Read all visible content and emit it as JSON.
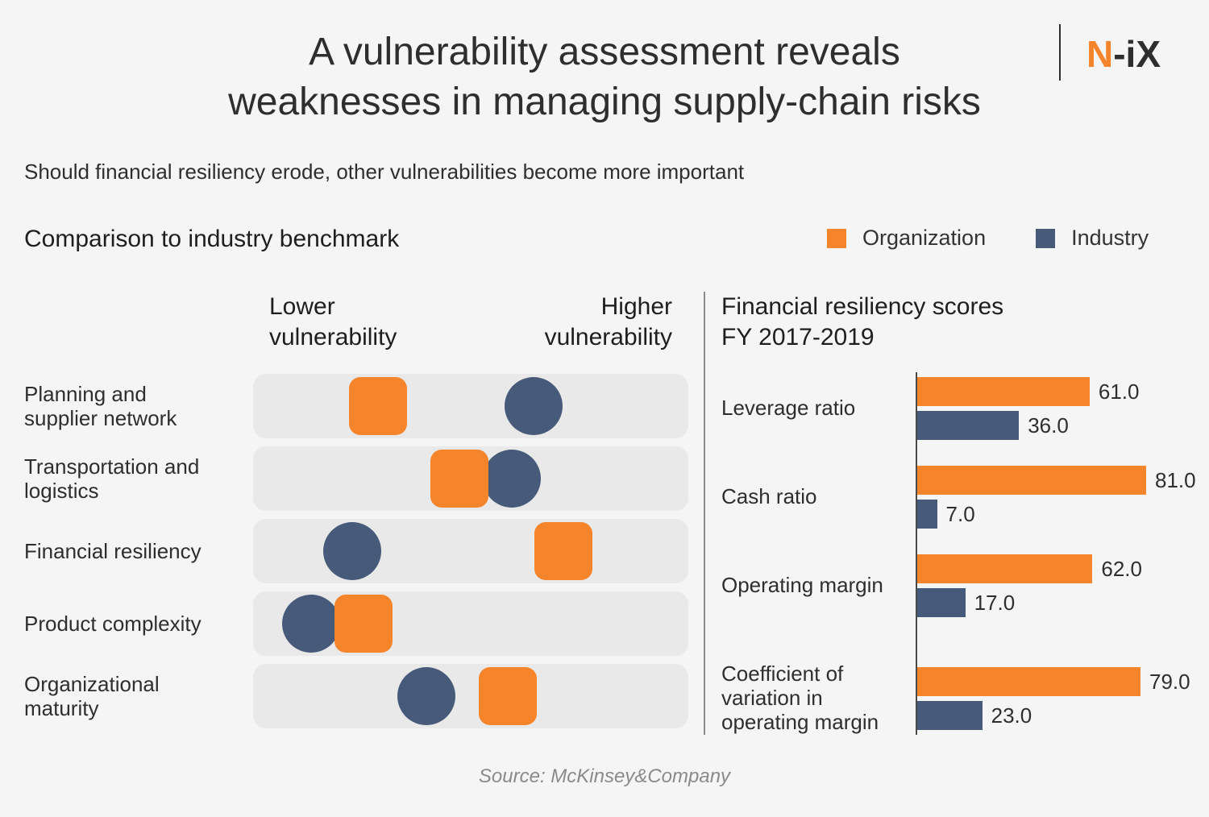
{
  "header": {
    "title_line1": "A vulnerability assessment reveals",
    "title_line2": "weaknesses in managing supply-chain risks",
    "logo_n": "N",
    "logo_rest": "-iX",
    "subtitle": "Should financial resiliency erode, other vulnerabilities become more important"
  },
  "section_title": "Comparison to industry benchmark",
  "legend": {
    "organization": "Organization",
    "industry": "Industry"
  },
  "colors": {
    "organization": "#f5842a",
    "industry": "#475a7a"
  },
  "chart_data": [
    {
      "type": "scatter",
      "title": "",
      "x_axis_low_line1": "Lower",
      "x_axis_low_line2": "vulnerability",
      "x_axis_high_line1": "Higher",
      "x_axis_high_line2": "vulnerability",
      "xlim": [
        0,
        1
      ],
      "categories": [
        [
          "Planning and",
          "supplier network"
        ],
        [
          "Transportation and",
          "logistics"
        ],
        [
          "Financial resiliency"
        ],
        [
          "Product complexity"
        ],
        [
          "Organizational",
          "maturity"
        ]
      ],
      "series": [
        {
          "name": "Organization",
          "values": [
            0.25,
            0.47,
            0.75,
            0.21,
            0.6
          ]
        },
        {
          "name": "Industry",
          "values": [
            0.67,
            0.61,
            0.18,
            0.07,
            0.38
          ]
        }
      ]
    },
    {
      "type": "bar",
      "title_line1": "Financial resiliency scores",
      "title_line2": "FY 2017-2019",
      "categories": [
        [
          "Leverage ratio"
        ],
        [
          "Cash ratio"
        ],
        [
          "Operating margin"
        ],
        [
          "Coefficient of",
          "variation in",
          "operating margin"
        ]
      ],
      "series": [
        {
          "name": "Organization",
          "values": [
            61.0,
            81.0,
            62.0,
            79.0
          ],
          "labels": [
            "61.0",
            "81.0",
            "62.0",
            "79.0"
          ]
        },
        {
          "name": "Industry",
          "values": [
            36.0,
            7.0,
            17.0,
            23.0
          ],
          "labels": [
            "36.0",
            "7.0",
            "17.0",
            "23.0"
          ]
        }
      ]
    }
  ],
  "source": "Source: McKinsey&Company"
}
